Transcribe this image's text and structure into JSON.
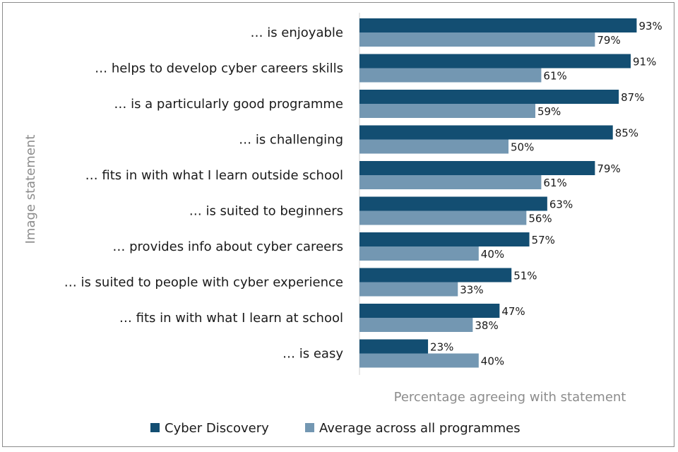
{
  "chart_data": {
    "type": "bar",
    "orientation": "horizontal",
    "ylabel": "Image statement",
    "xlabel": "Percentage agreeing with statement",
    "xlim": [
      0,
      100
    ],
    "grid": false,
    "legend_position": "bottom",
    "categories": [
      "… is enjoyable",
      "… helps to develop cyber careers skills",
      "… is a particularly good programme",
      "… is challenging",
      "… fits in with what I learn outside school",
      "… is suited to beginners",
      "… provides info about cyber careers",
      "… is suited to people with cyber experience",
      "… fits in with what I learn at school",
      "… is easy"
    ],
    "series": [
      {
        "name": "Cyber Discovery",
        "color": "#134e72",
        "values": [
          93,
          91,
          87,
          85,
          79,
          63,
          57,
          51,
          47,
          23
        ],
        "labels": [
          "93%",
          "91%",
          "87%",
          "85%",
          "79%",
          "63%",
          "57%",
          "51%",
          "47%",
          "23%"
        ]
      },
      {
        "name": "Average across all programmes",
        "color": "#7397b2",
        "values": [
          79,
          61,
          59,
          50,
          61,
          56,
          40,
          33,
          38,
          40
        ],
        "labels": [
          "79%",
          "61%",
          "59%",
          "50%",
          "61%",
          "56%",
          "40%",
          "33%",
          "38%",
          "40%"
        ]
      }
    ]
  }
}
